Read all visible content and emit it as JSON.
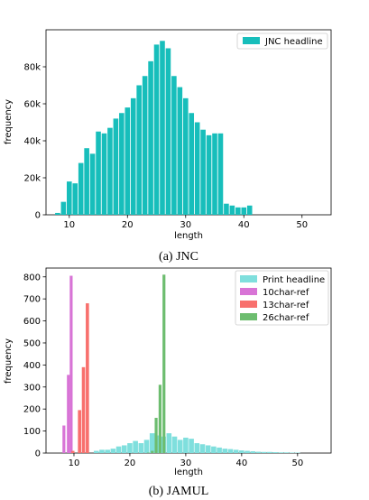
{
  "chart_data": [
    {
      "type": "bar",
      "caption": "(a) JNC",
      "xlabel": "length",
      "ylabel": "frequency",
      "xlim": [
        6,
        55
      ],
      "ylim": [
        0,
        100000
      ],
      "xticks": [
        10,
        20,
        30,
        40,
        50
      ],
      "yticks": [
        0,
        20000,
        40000,
        60000,
        80000
      ],
      "ytick_labels": [
        "0",
        "20k",
        "40k",
        "60k",
        "80k"
      ],
      "legend_position": "top-right",
      "grid": false,
      "series": [
        {
          "name": "JNC headline",
          "color": "#17bebb",
          "x": [
            8,
            9,
            10,
            11,
            12,
            13,
            14,
            15,
            16,
            17,
            18,
            19,
            20,
            21,
            22,
            23,
            24,
            25,
            26,
            27,
            28,
            29,
            30,
            31,
            32,
            33,
            34,
            35,
            36,
            37,
            38,
            39,
            40,
            41
          ],
          "values": [
            1000,
            7000,
            18000,
            17000,
            28000,
            36000,
            33000,
            45000,
            44000,
            47000,
            52000,
            55000,
            58000,
            63000,
            70000,
            75000,
            83000,
            92000,
            94000,
            90000,
            75000,
            69000,
            63000,
            55000,
            50000,
            46000,
            43000,
            44000,
            44000,
            6000,
            5000,
            4000,
            4000,
            5000
          ]
        }
      ]
    },
    {
      "type": "bar",
      "caption": "(b) JAMUL",
      "xlabel": "length",
      "ylabel": "frequency",
      "xlim": [
        5,
        56
      ],
      "ylim": [
        0,
        840
      ],
      "xticks": [
        10,
        20,
        30,
        40,
        50
      ],
      "yticks": [
        0,
        100,
        200,
        300,
        400,
        500,
        600,
        700,
        800
      ],
      "ytick_labels": [
        "0",
        "100",
        "200",
        "300",
        "400",
        "500",
        "600",
        "700",
        "800"
      ],
      "legend_position": "top-right",
      "grid": false,
      "series": [
        {
          "name": "Print headline",
          "color": "#7fdfdd",
          "x": [
            14,
            15,
            16,
            17,
            18,
            19,
            20,
            21,
            22,
            23,
            24,
            25,
            26,
            27,
            28,
            29,
            30,
            31,
            32,
            33,
            34,
            35,
            36,
            37,
            38,
            39,
            40,
            41,
            42,
            43,
            44,
            45,
            46,
            47,
            48,
            49,
            50
          ],
          "values": [
            10,
            15,
            15,
            20,
            30,
            35,
            45,
            55,
            45,
            60,
            90,
            80,
            75,
            90,
            75,
            60,
            70,
            65,
            45,
            40,
            35,
            30,
            25,
            20,
            18,
            15,
            12,
            10,
            8,
            6,
            5,
            5,
            4,
            3,
            3,
            2,
            2
          ]
        },
        {
          "name": "10char-ref",
          "color": "#d874d6",
          "x": [
            8.2,
            9.0,
            9.5
          ],
          "values": [
            125,
            355,
            805
          ]
        },
        {
          "name": "13char-ref",
          "color": "#f8706d",
          "x": [
            9.8,
            11.0,
            11.7,
            12.4
          ],
          "values": [
            10,
            195,
            390,
            680
          ]
        },
        {
          "name": "26char-ref",
          "color": "#6dbd6f",
          "x": [
            23.3,
            24.0,
            24.7,
            25.4,
            26.1
          ],
          "values": [
            2,
            10,
            160,
            310,
            810
          ]
        }
      ]
    }
  ]
}
